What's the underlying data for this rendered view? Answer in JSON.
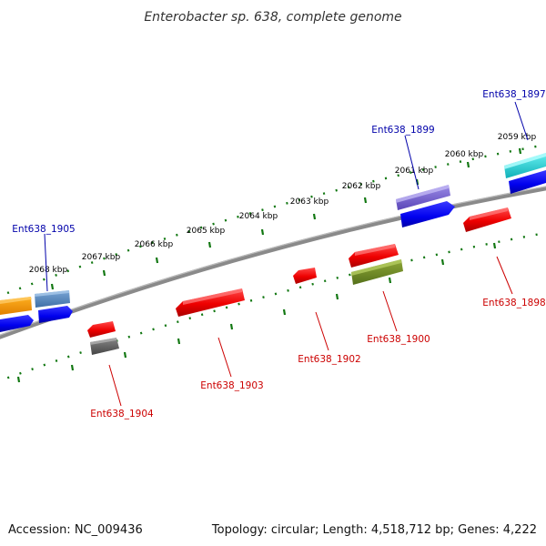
{
  "title": "Enterobacter sp. 638, complete genome",
  "footer": {
    "accession": "Accession: NC_009436",
    "stats": "Topology: circular; Length: 4,518,712 bp; Genes: 4,222"
  },
  "scale_labels": [
    "2059 kbp",
    "2060 kbp",
    "2061 kbp",
    "2062 kbp",
    "2063 kbp",
    "2064 kbp",
    "2065 kbp",
    "2066 kbp",
    "2067 kbp",
    "2068 kbp"
  ],
  "gene_labels": {
    "top": [
      "Ent638_1897",
      "Ent638_1899",
      "Ent638_1905"
    ],
    "bottom": [
      "Ent638_1898",
      "Ent638_1900",
      "Ent638_1902",
      "Ent638_1903",
      "Ent638_1904"
    ]
  },
  "colors": {
    "top_label": "#0000aa",
    "bottom_label": "#cc0000",
    "backbone": "#777777",
    "ticks": "#117711"
  }
}
